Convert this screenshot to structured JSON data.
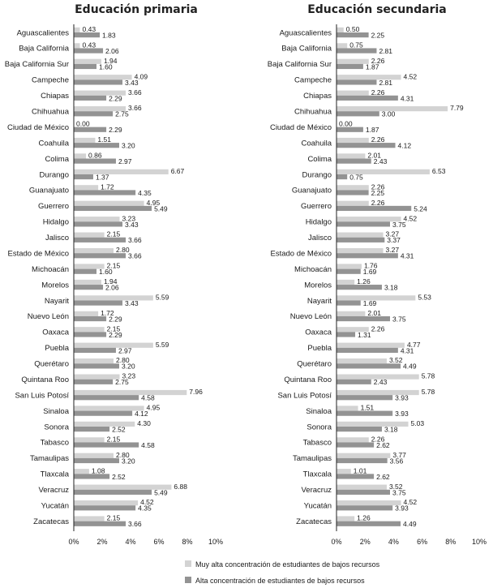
{
  "chart_data": [
    {
      "type": "bar",
      "orientation": "horizontal",
      "title": "Educación primaria",
      "xlim": [
        0,
        10
      ],
      "categories": [
        "Aguascalientes",
        "Baja California",
        "Baja California Sur",
        "Campeche",
        "Chiapas",
        "Chihuahua",
        "Ciudad de México",
        "Coahuila",
        "Colima",
        "Durango",
        "Guanajuato",
        "Guerrero",
        "Hidalgo",
        "Jalisco",
        "Estado de México",
        "Michoacán",
        "Morelos",
        "Nayarit",
        "Nuevo León",
        "Oaxaca",
        "Puebla",
        "Querétaro",
        "Quintana Roo",
        "San Luis Potosí",
        "Sinaloa",
        "Sonora",
        "Tabasco",
        "Tamaulipas",
        "Tlaxcala",
        "Veracruz",
        "Yucatán",
        "Zacatecas"
      ],
      "series": [
        {
          "name": "Muy alta concentración de estudiantes de bajos recursos",
          "color": "#d3d3d3",
          "values": [
            0.43,
            0.43,
            1.94,
            4.09,
            3.66,
            3.66,
            0.0,
            1.51,
            0.86,
            6.67,
            1.72,
            4.95,
            3.23,
            2.15,
            2.8,
            2.15,
            1.94,
            5.59,
            1.72,
            2.15,
            5.59,
            2.8,
            3.23,
            7.96,
            4.95,
            4.3,
            2.15,
            2.8,
            1.08,
            6.88,
            4.52,
            2.15
          ]
        },
        {
          "name": "Alta concentración de estudiantes de bajos recursos",
          "color": "#939393",
          "values": [
            1.83,
            2.06,
            1.6,
            3.43,
            2.29,
            2.75,
            2.29,
            3.2,
            2.97,
            1.37,
            4.35,
            5.49,
            3.43,
            3.66,
            3.66,
            1.6,
            2.06,
            3.43,
            2.29,
            2.29,
            2.97,
            3.2,
            2.75,
            4.58,
            4.12,
            2.52,
            4.58,
            3.2,
            2.52,
            5.49,
            4.35,
            3.66
          ]
        }
      ],
      "tick_labels": [
        "0%",
        "2%",
        "4%",
        "6%",
        "8%",
        "10%"
      ]
    },
    {
      "type": "bar",
      "orientation": "horizontal",
      "title": "Educación secundaria",
      "xlim": [
        0,
        10
      ],
      "categories": [
        "Aguascalientes",
        "Baja California",
        "Baja California Sur",
        "Campeche",
        "Chiapas",
        "Chihuahua",
        "Ciudad de México",
        "Coahuila",
        "Colima",
        "Durango",
        "Guanajuato",
        "Guerrero",
        "Hidalgo",
        "Jalisco",
        "Estado de México",
        "Michoacán",
        "Morelos",
        "Nayarit",
        "Nuevo León",
        "Oaxaca",
        "Puebla",
        "Querétaro",
        "Quintana Roo",
        "San Luis Potosí",
        "Sinaloa",
        "Sonora",
        "Tabasco",
        "Tamaulipas",
        "Tlaxcala",
        "Veracruz",
        "Yucatán",
        "Zacatecas"
      ],
      "series": [
        {
          "name": "Muy alta concentración de estudiantes de bajos recursos",
          "color": "#d3d3d3",
          "values": [
            0.5,
            0.75,
            2.26,
            4.52,
            2.26,
            7.79,
            0.0,
            2.26,
            2.01,
            6.53,
            2.26,
            2.26,
            4.52,
            3.27,
            3.27,
            1.76,
            1.26,
            5.53,
            2.01,
            2.26,
            4.77,
            3.52,
            5.78,
            5.78,
            1.51,
            5.03,
            2.26,
            3.77,
            1.01,
            3.52,
            4.52,
            1.26
          ]
        },
        {
          "name": "Alta concentración de estudiantes de bajos recursos",
          "color": "#939393",
          "values": [
            2.25,
            2.81,
            1.87,
            2.81,
            4.31,
            3.0,
            1.87,
            4.12,
            2.43,
            0.75,
            2.25,
            5.24,
            3.75,
            3.37,
            4.31,
            1.69,
            3.18,
            1.69,
            3.75,
            1.31,
            4.31,
            4.49,
            2.43,
            3.93,
            3.93,
            3.18,
            2.62,
            3.56,
            2.62,
            3.75,
            3.93,
            4.49
          ]
        }
      ],
      "tick_labels": [
        "0%",
        "2%",
        "4%",
        "6%",
        "8%",
        "10%"
      ]
    }
  ],
  "legend": {
    "items": [
      {
        "label": "Muy alta concentración de estudiantes de bajos recursos",
        "color": "#d3d3d3"
      },
      {
        "label": "Alta concentración de estudiantes de bajos recursos",
        "color": "#939393"
      }
    ]
  }
}
